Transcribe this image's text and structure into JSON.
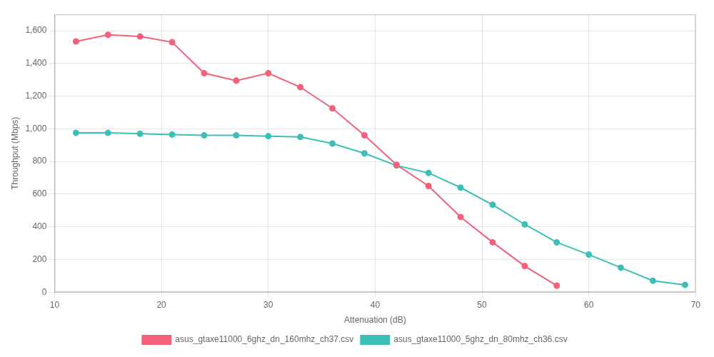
{
  "chart_data": {
    "type": "line",
    "xlabel": "Attenuation (dB)",
    "ylabel": "Throughput (Mbps)",
    "xlim": [
      10,
      70
    ],
    "xticks": [
      10,
      20,
      30,
      40,
      50,
      60,
      70
    ],
    "ylim": [
      0,
      1700
    ],
    "yticks": [
      0,
      200,
      400,
      600,
      800,
      1000,
      1200,
      1400,
      1600
    ],
    "grid": true,
    "legend": "bottom",
    "marker": "circle",
    "series": [
      {
        "name": "asus_gtaxe11000_6ghz_dn_160mhz_ch37.csv",
        "color": "#f4607a",
        "x": [
          12,
          15,
          18,
          21,
          24,
          27,
          30,
          33,
          36,
          39,
          42,
          45,
          48,
          51,
          54,
          57
        ],
        "values": [
          1535,
          1575,
          1565,
          1530,
          1340,
          1295,
          1340,
          1255,
          1125,
          960,
          780,
          650,
          460,
          305,
          160,
          40
        ]
      },
      {
        "name": "asus_gtaxe11000_5ghz_dn_80mhz_ch36.csv",
        "color": "#3dbfb8",
        "x": [
          12,
          15,
          18,
          21,
          24,
          27,
          30,
          33,
          36,
          39,
          42,
          45,
          48,
          51,
          54,
          57,
          60,
          63,
          66,
          69
        ],
        "values": [
          975,
          975,
          970,
          965,
          960,
          960,
          955,
          950,
          910,
          850,
          775,
          730,
          640,
          535,
          415,
          305,
          230,
          150,
          70,
          45
        ]
      }
    ]
  }
}
